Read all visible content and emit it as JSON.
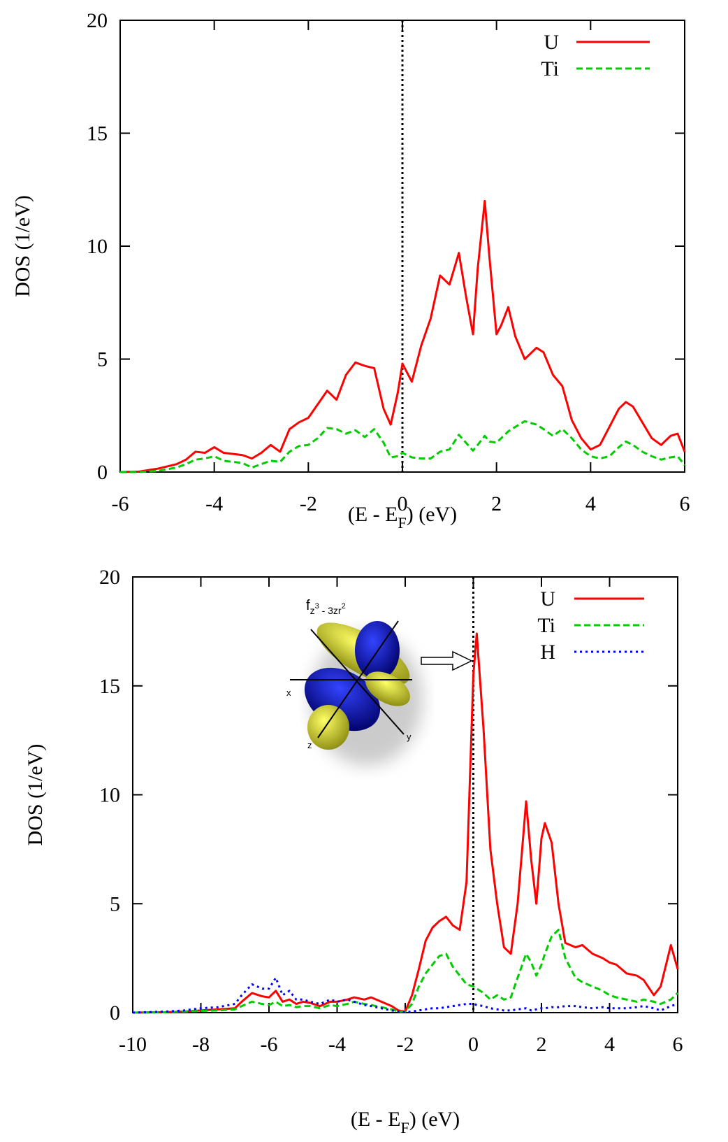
{
  "chart_data": [
    {
      "type": "line",
      "ylabel": "DOS (1/eV)",
      "xlabel": [
        "(E - E",
        "F",
        ") (eV)"
      ],
      "xlim": [
        -6,
        6
      ],
      "ylim": [
        0,
        20
      ],
      "xticks": [
        -6,
        -4,
        -2,
        0,
        2,
        4,
        6
      ],
      "yticks": [
        0,
        5,
        10,
        15,
        20
      ],
      "vline": 0,
      "legend": "upper right",
      "x": [
        -6,
        -5.6,
        -5.2,
        -4.8,
        -4.6,
        -4.4,
        -4.2,
        -4.0,
        -3.8,
        -3.6,
        -3.4,
        -3.2,
        -3.0,
        -2.8,
        -2.6,
        -2.4,
        -2.2,
        -2.0,
        -1.8,
        -1.6,
        -1.4,
        -1.2,
        -1.0,
        -0.8,
        -0.6,
        -0.4,
        -0.25,
        -0.1,
        0.0,
        0.2,
        0.4,
        0.6,
        0.8,
        1.0,
        1.2,
        1.35,
        1.5,
        1.6,
        1.75,
        1.85,
        2.0,
        2.1,
        2.25,
        2.4,
        2.6,
        2.85,
        3.0,
        3.2,
        3.4,
        3.6,
        3.8,
        4.0,
        4.2,
        4.4,
        4.6,
        4.75,
        4.9,
        5.1,
        5.3,
        5.5,
        5.7,
        5.85,
        6.0
      ],
      "series": [
        {
          "name": "U",
          "color": "#ff0000",
          "style": "solid",
          "values": [
            0,
            0.02,
            0.15,
            0.35,
            0.55,
            0.9,
            0.85,
            1.1,
            0.85,
            0.8,
            0.75,
            0.6,
            0.85,
            1.2,
            0.9,
            1.9,
            2.2,
            2.4,
            3.0,
            3.6,
            3.2,
            4.3,
            4.85,
            4.7,
            4.6,
            2.8,
            2.1,
            3.5,
            4.8,
            4.0,
            5.6,
            6.8,
            8.7,
            8.3,
            9.7,
            7.8,
            6.1,
            9.0,
            12.0,
            9.5,
            6.1,
            6.5,
            7.3,
            6.0,
            5.0,
            5.5,
            5.3,
            4.3,
            3.8,
            2.3,
            1.5,
            1.0,
            1.2,
            2.0,
            2.8,
            3.1,
            2.9,
            2.2,
            1.5,
            1.2,
            1.6,
            1.7,
            0.9
          ]
        },
        {
          "name": "Ti",
          "color": "#00cc00",
          "style": "dashed",
          "values": [
            0,
            0,
            0.05,
            0.2,
            0.35,
            0.55,
            0.6,
            0.7,
            0.5,
            0.45,
            0.4,
            0.2,
            0.35,
            0.5,
            0.45,
            0.9,
            1.15,
            1.2,
            1.5,
            1.95,
            1.9,
            1.7,
            1.85,
            1.55,
            1.9,
            1.3,
            0.65,
            0.7,
            0.85,
            0.65,
            0.6,
            0.6,
            0.9,
            1.0,
            1.65,
            1.3,
            0.95,
            1.2,
            1.6,
            1.35,
            1.3,
            1.5,
            1.8,
            2.0,
            2.25,
            2.1,
            1.9,
            1.6,
            1.9,
            1.5,
            1.0,
            0.7,
            0.6,
            0.7,
            1.1,
            1.35,
            1.2,
            0.9,
            0.7,
            0.55,
            0.65,
            0.7,
            0.3
          ]
        }
      ]
    },
    {
      "type": "line",
      "ylabel": "DOS (1/eV)",
      "xlabel": [
        "(E - E",
        "F",
        ") (eV)"
      ],
      "xlim": [
        -10,
        6
      ],
      "ylim": [
        0,
        20
      ],
      "xticks": [
        -10,
        -8,
        -6,
        -4,
        -2,
        0,
        2,
        4,
        6
      ],
      "yticks": [
        0,
        5,
        10,
        15,
        20
      ],
      "vline": 0,
      "legend": "upper right",
      "annotation": [
        "f",
        "z",
        "3",
        " - 3zr",
        "2"
      ],
      "inset_axis_labels": [
        "x",
        "y",
        "z"
      ],
      "x": [
        -10,
        -9,
        -8.5,
        -8,
        -7.5,
        -7,
        -6.8,
        -6.5,
        -6.2,
        -6.0,
        -5.8,
        -5.6,
        -5.4,
        -5.2,
        -5.0,
        -4.8,
        -4.5,
        -4.2,
        -4.0,
        -3.7,
        -3.5,
        -3.2,
        -3.0,
        -2.7,
        -2.4,
        -2.2,
        -2.0,
        -1.8,
        -1.6,
        -1.4,
        -1.2,
        -1.0,
        -0.8,
        -0.6,
        -0.4,
        -0.2,
        0.0,
        0.1,
        0.3,
        0.5,
        0.7,
        0.9,
        1.1,
        1.3,
        1.55,
        1.7,
        1.85,
        2.0,
        2.1,
        2.3,
        2.5,
        2.7,
        3.0,
        3.2,
        3.5,
        3.8,
        4.0,
        4.2,
        4.5,
        4.8,
        5.0,
        5.3,
        5.5,
        5.8,
        6.0
      ],
      "series": [
        {
          "name": "U",
          "color": "#ff0000",
          "style": "solid",
          "values": [
            0,
            0.02,
            0.05,
            0.1,
            0.15,
            0.2,
            0.5,
            0.9,
            0.75,
            0.7,
            1.0,
            0.5,
            0.6,
            0.4,
            0.5,
            0.45,
            0.3,
            0.5,
            0.5,
            0.6,
            0.7,
            0.6,
            0.7,
            0.5,
            0.3,
            0.1,
            0.05,
            0.8,
            2.0,
            3.3,
            3.9,
            4.2,
            4.4,
            4.0,
            3.8,
            6.0,
            15.5,
            17.4,
            13.0,
            7.5,
            5.0,
            3.0,
            2.7,
            5.0,
            9.7,
            7.0,
            5.0,
            8.0,
            8.7,
            7.8,
            5.0,
            3.2,
            3.0,
            3.1,
            2.7,
            2.5,
            2.3,
            2.2,
            1.8,
            1.7,
            1.5,
            0.8,
            1.2,
            3.1,
            2.0
          ]
        },
        {
          "name": "Ti",
          "color": "#00cc00",
          "style": "dashed",
          "values": [
            0,
            0.02,
            0.05,
            0.08,
            0.1,
            0.15,
            0.3,
            0.5,
            0.4,
            0.35,
            0.5,
            0.3,
            0.35,
            0.25,
            0.3,
            0.3,
            0.2,
            0.35,
            0.3,
            0.4,
            0.5,
            0.4,
            0.35,
            0.25,
            0.15,
            0.05,
            0.05,
            0.4,
            1.2,
            1.8,
            2.2,
            2.6,
            2.7,
            2.1,
            1.7,
            1.3,
            1.2,
            1.1,
            0.9,
            0.6,
            0.8,
            0.6,
            0.7,
            1.6,
            2.7,
            2.3,
            1.7,
            2.2,
            2.7,
            3.5,
            3.8,
            2.5,
            1.6,
            1.4,
            1.2,
            1.0,
            0.8,
            0.7,
            0.6,
            0.5,
            0.6,
            0.5,
            0.4,
            0.6,
            0.9
          ]
        },
        {
          "name": "H",
          "color": "#0000ff",
          "style": "dotted",
          "values": [
            0,
            0.05,
            0.1,
            0.2,
            0.25,
            0.4,
            0.8,
            1.3,
            1.1,
            1.1,
            1.6,
            0.8,
            1.0,
            0.6,
            0.6,
            0.5,
            0.4,
            0.6,
            0.5,
            0.6,
            0.5,
            0.35,
            0.3,
            0.2,
            0.1,
            0.05,
            0.02,
            0.05,
            0.1,
            0.15,
            0.2,
            0.2,
            0.25,
            0.3,
            0.35,
            0.4,
            0.4,
            0.35,
            0.3,
            0.2,
            0.15,
            0.1,
            0.1,
            0.15,
            0.2,
            0.1,
            0.15,
            0.2,
            0.2,
            0.25,
            0.25,
            0.3,
            0.3,
            0.25,
            0.2,
            0.25,
            0.2,
            0.2,
            0.2,
            0.25,
            0.3,
            0.2,
            0.1,
            0.3,
            0.4
          ]
        }
      ]
    }
  ]
}
